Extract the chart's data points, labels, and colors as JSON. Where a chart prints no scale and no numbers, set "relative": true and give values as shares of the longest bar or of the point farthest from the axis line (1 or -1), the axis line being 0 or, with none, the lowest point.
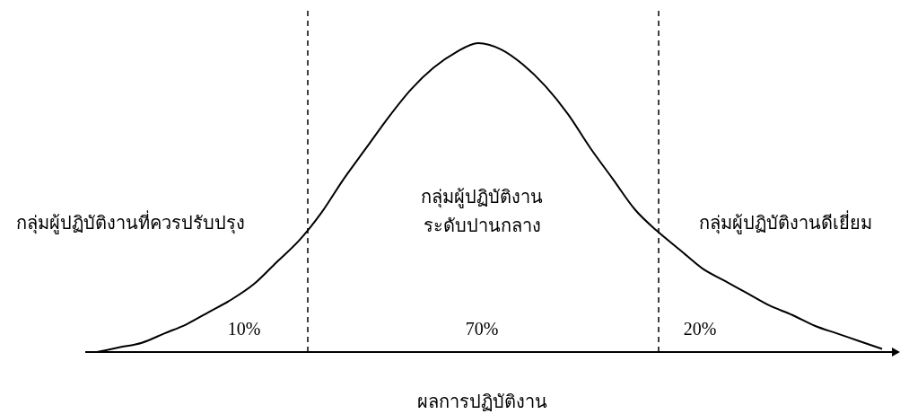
{
  "chart_data": {
    "type": "line",
    "relative": true,
    "xlabel": "ผลการปฏิบัติงาน",
    "marker": "none",
    "line_style": "solid",
    "categories": [
      null,
      null,
      null,
      null,
      null,
      null,
      null,
      null,
      null,
      null,
      null,
      null,
      null,
      null,
      null,
      null,
      null,
      null,
      null,
      null,
      null,
      null,
      null,
      null,
      null,
      null,
      null,
      null,
      null,
      null,
      null,
      null,
      null,
      null,
      null,
      null
    ],
    "series": [
      {
        "color": "#000000",
        "values": [
          0,
          0.015,
          0.03,
          0.06,
          0.09,
          0.13,
          0.17,
          0.22,
          0.29,
          0.36,
          0.45,
          0.56,
          0.66,
          0.76,
          0.85,
          0.92,
          0.97,
          1,
          0.98,
          0.93,
          0.86,
          0.77,
          0.66,
          0.56,
          0.46,
          0.39,
          0.33,
          0.27,
          0.23,
          0.19,
          0.15,
          0.12,
          0.085,
          0.06,
          0.035,
          0.01
        ]
      }
    ],
    "annotations": [
      "กลุ่มผู้ปฏิบัติงานที่ควรปรับปรุง",
      "กลุ่มผู้ปฏิบัติงาน\nระดับปานกลาง",
      "กลุ่มผู้ปฏิบัติงานดีเยี่ยม",
      "10%",
      "70%",
      "20%"
    ]
  }
}
